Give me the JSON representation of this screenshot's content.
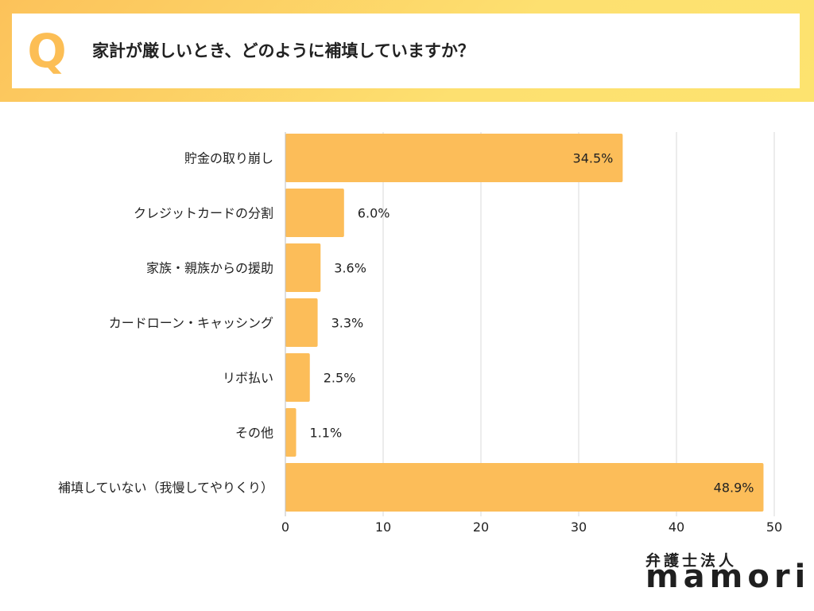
{
  "question": {
    "letter": "Q",
    "text": "家計が厳しいとき、どのように補填していますか？"
  },
  "brand": {
    "org": "弁護士法人",
    "name": "mamori"
  },
  "colors": {
    "bar": "#fcbd59",
    "banner": "#fddd68",
    "grid": "#d9d9d9",
    "text": "#222222"
  },
  "chart_data": {
    "type": "bar",
    "orientation": "horizontal",
    "title": "家計が厳しいとき、どのように補填していますか？",
    "categories": [
      "貯金の取り崩し",
      "クレジットカードの分割",
      "家族・親族からの援助",
      "カードローン・キャッシング",
      "リボ払い",
      "その他",
      "補填していない（我慢してやりくり）"
    ],
    "values": [
      34.5,
      6.0,
      3.6,
      3.3,
      2.5,
      1.1,
      48.9
    ],
    "value_labels": [
      "34.5%",
      "6.0%",
      "3.6%",
      "3.3%",
      "2.5%",
      "1.1%",
      "48.9%"
    ],
    "xlim": [
      0,
      50
    ],
    "xticks": [
      0,
      10,
      20,
      30,
      40,
      50
    ],
    "xlabel": "",
    "ylabel": "",
    "grid": true
  }
}
